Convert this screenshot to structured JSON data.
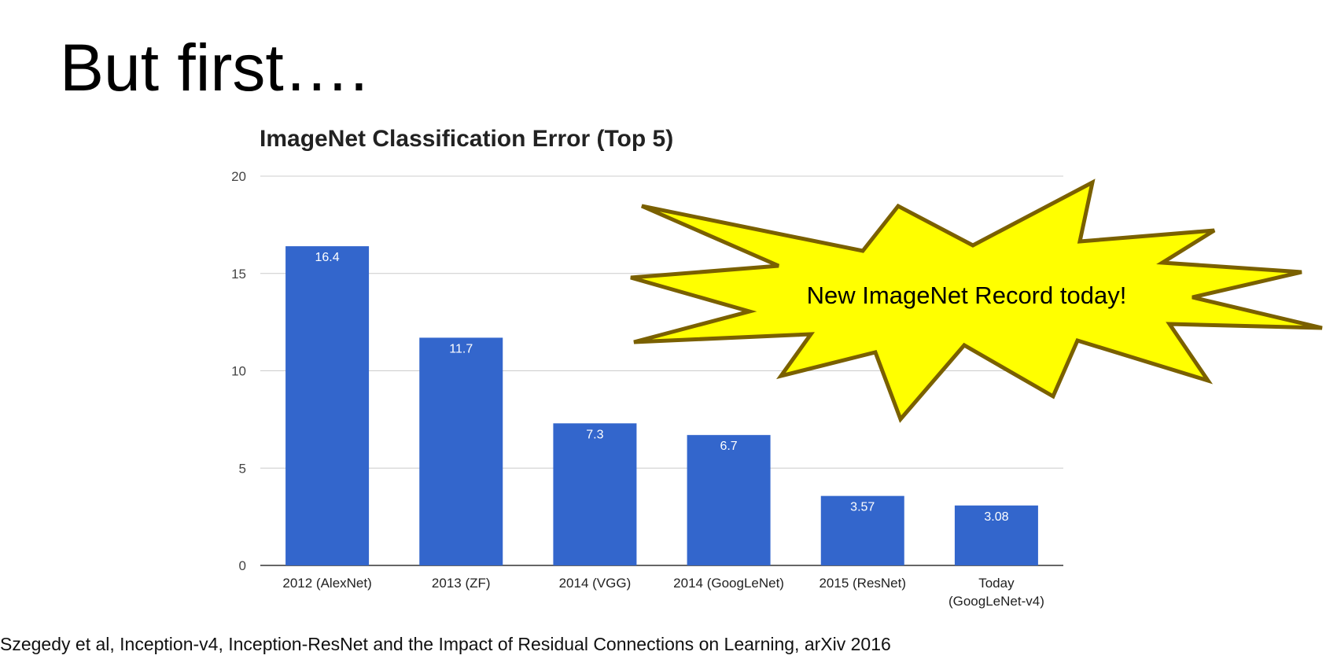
{
  "slide": {
    "title": "But first….",
    "citation": "Szegedy et al, Inception-v4, Inception-ResNet and the Impact of Residual Connections on Learning, arXiv 2016"
  },
  "callout": {
    "text": "New ImageNet Record today!",
    "fill_color": "#ffff00",
    "stroke_color": "#7a6000"
  },
  "chart_data": {
    "type": "bar",
    "title": "ImageNet Classification Error (Top 5)",
    "xlabel": "",
    "ylabel": "",
    "ylim": [
      0,
      20
    ],
    "yticks": [
      "0",
      "5",
      "10",
      "15",
      "20"
    ],
    "grid": true,
    "bar_color": "#3366cc",
    "categories": [
      [
        "2012 (AlexNet)"
      ],
      [
        "2013 (ZF)"
      ],
      [
        "2014 (VGG)"
      ],
      [
        "2014 (GoogLeNet)"
      ],
      [
        "2015 (ResNet)"
      ],
      [
        "Today",
        "(GoogLeNet-v4)"
      ]
    ],
    "values": [
      16.4,
      11.7,
      7.3,
      6.7,
      3.57,
      3.08
    ],
    "value_labels": [
      "16.4",
      "11.7",
      "7.3",
      "6.7",
      "3.57",
      "3.08"
    ]
  }
}
